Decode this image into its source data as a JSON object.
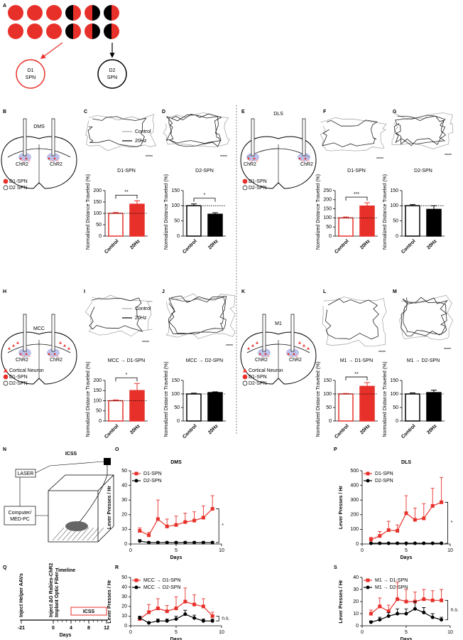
{
  "panel_letters": [
    "A",
    "B",
    "C",
    "D",
    "E",
    "F",
    "G",
    "H",
    "I",
    "J",
    "K",
    "L",
    "M",
    "N",
    "O",
    "P",
    "Q",
    "R",
    "S"
  ],
  "panel_a": {
    "d1_label": [
      "D1",
      "SPN"
    ],
    "d2_label": [
      "D2",
      "SPN"
    ]
  },
  "brains": [
    {
      "region": "DMS",
      "chr2": [
        "ChR2",
        "ChR2"
      ],
      "legend": [
        "D1-SPN",
        "D2 SPN"
      ]
    },
    {
      "region": "DLS",
      "chr2": [
        "ChR2",
        "ChR2"
      ],
      "legend": [
        "D1-SPN",
        "D2-SPN"
      ]
    },
    {
      "region": "MCC",
      "chr2": [
        "ChR2",
        "ChR2"
      ],
      "legend": [
        "Cortical Neuron",
        "D1-SPN",
        "D2-SPN"
      ]
    },
    {
      "region": "M1",
      "chr2": [
        "ChR2",
        "ChR2"
      ],
      "legend": [
        "Cortical Neuron",
        "D1-SPN",
        "D2-SPN"
      ]
    }
  ],
  "trace_legends": [
    [
      "Control",
      "20Hz"
    ],
    [
      "Control",
      "20Hz"
    ]
  ],
  "icss": {
    "title": "ICSS",
    "laser": "LASER",
    "computer": [
      "Computer/",
      "MED-PC"
    ]
  },
  "timeline": {
    "title": "Timeline",
    "events": [
      "Inject Helper AAVs",
      "Inject ΔG Rabies-ChR2",
      "Implant Optic Fiber"
    ],
    "box": "ICSS",
    "xlabel": "Days",
    "xticks": [
      -21,
      0,
      4,
      8,
      12
    ]
  },
  "chart_data": [
    {
      "type": "bar",
      "title": "D1-SPN",
      "ylabel": "Normalized Distance Traveled (%)",
      "categories": [
        "Control",
        "20Hz"
      ],
      "values": [
        100,
        140
      ],
      "errors": [
        4,
        15
      ],
      "color": "#e8302a",
      "ylim": [
        0,
        200
      ],
      "yticks": [
        0,
        50,
        100,
        150,
        200
      ],
      "reference_line": 100,
      "annotation": "**"
    },
    {
      "type": "bar",
      "title": "D2-SPN",
      "ylabel": "Normalized Distance Traveled (%)",
      "categories": [
        "Control",
        "20Hz"
      ],
      "values": [
        100,
        72
      ],
      "errors": [
        6,
        5
      ],
      "color": "#000000",
      "ylim": [
        0,
        150
      ],
      "yticks": [
        0,
        50,
        100,
        150
      ],
      "reference_line": 100,
      "annotation": "*"
    },
    {
      "type": "bar",
      "title": "D1-SPN",
      "ylabel": "Normalized Distance Traveled (%)",
      "categories": [
        "Control",
        "20Hz"
      ],
      "values": [
        100,
        165
      ],
      "errors": [
        5,
        18
      ],
      "color": "#e8302a",
      "ylim": [
        0,
        250
      ],
      "yticks": [
        0,
        50,
        100,
        150,
        200,
        250
      ],
      "reference_line": 100,
      "annotation": "***"
    },
    {
      "type": "bar",
      "title": "D2-SPN",
      "ylabel": "Normalized Distance Traveled (%)",
      "categories": [
        "Control",
        "20Hz"
      ],
      "values": [
        100,
        88
      ],
      "errors": [
        4,
        12
      ],
      "color": "#000000",
      "ylim": [
        0,
        150
      ],
      "yticks": [
        0,
        50,
        100,
        150
      ],
      "reference_line": 100
    },
    {
      "type": "bar",
      "title": "MCC → D1-SPN",
      "ylabel": "Normalized Distance Traveled (%)",
      "categories": [
        "Control",
        "20Hz"
      ],
      "values": [
        100,
        150
      ],
      "errors": [
        4,
        35
      ],
      "color": "#e8302a",
      "ylim": [
        0,
        200
      ],
      "yticks": [
        0,
        50,
        100,
        150,
        200
      ],
      "reference_line": 100,
      "annotation": "*"
    },
    {
      "type": "bar",
      "title": "MCC → D2-SPN",
      "ylabel": "Normalized Distance Traveled (%)",
      "categories": [
        "Control",
        "20Hz"
      ],
      "values": [
        100,
        105
      ],
      "errors": [
        3,
        3
      ],
      "color": "#000000",
      "ylim": [
        0,
        150
      ],
      "yticks": [
        0,
        50,
        100,
        150
      ],
      "reference_line": 100
    },
    {
      "type": "bar",
      "title": "M1 → D1-SPN",
      "ylabel": "Normalized Distance Traveled (%)",
      "categories": [
        "Control",
        "20Hz"
      ],
      "values": [
        100,
        128
      ],
      "errors": [
        2,
        14
      ],
      "color": "#e8302a",
      "ylim": [
        0,
        150
      ],
      "yticks": [
        0,
        50,
        100,
        150
      ],
      "reference_line": 100,
      "annotation": "**"
    },
    {
      "type": "bar",
      "title": "M1 → D2-SPN",
      "ylabel": "Normalized Distance Traveled (%)",
      "categories": [
        "Control",
        "20Hz"
      ],
      "values": [
        100,
        105
      ],
      "errors": [
        4,
        9
      ],
      "color": "#000000",
      "ylim": [
        0,
        150
      ],
      "yticks": [
        0,
        50,
        100,
        150
      ],
      "reference_line": 100
    },
    {
      "type": "line",
      "title": "DMS",
      "ylabel": "Lever Presses / Hr",
      "xlabel": "Days",
      "x": [
        1,
        2,
        3,
        4,
        5,
        6,
        7,
        8,
        9
      ],
      "xlim": [
        0,
        10
      ],
      "xticks": [
        0,
        5,
        10
      ],
      "ylim": [
        0,
        50
      ],
      "yticks": [
        0,
        10,
        20,
        30,
        40,
        50
      ],
      "annotation": "*",
      "series": [
        {
          "name": "D1-SPN",
          "color": "#e8302a",
          "values": [
            9,
            6,
            17,
            12,
            13,
            15,
            16,
            18,
            24
          ],
          "errors": [
            2,
            2,
            13,
            5,
            6,
            6,
            6,
            8,
            9
          ]
        },
        {
          "name": "D2-SPN",
          "color": "#000000",
          "values": [
            2,
            1,
            1,
            1,
            1,
            1,
            1,
            1,
            1
          ],
          "errors": [
            1,
            0.5,
            0.5,
            0.5,
            0.5,
            0.5,
            0.5,
            0.5,
            0.5
          ]
        }
      ]
    },
    {
      "type": "line",
      "title": "DLS",
      "ylabel": "Lever Presses / Hr",
      "xlabel": "Days",
      "x": [
        1,
        2,
        3,
        4,
        5,
        6,
        7,
        8,
        9
      ],
      "xlim": [
        0,
        10
      ],
      "xticks": [
        0,
        5,
        10
      ],
      "ylim": [
        0,
        500
      ],
      "yticks": [
        0,
        100,
        200,
        300,
        400,
        500
      ],
      "annotation": "*",
      "series": [
        {
          "name": "D1-SPN",
          "color": "#e8302a",
          "values": [
            30,
            55,
            95,
            90,
            210,
            165,
            175,
            260,
            285
          ],
          "errors": [
            15,
            30,
            60,
            40,
            120,
            80,
            100,
            120,
            170
          ]
        },
        {
          "name": "D2-SPN",
          "color": "#000000",
          "values": [
            5,
            5,
            5,
            5,
            5,
            5,
            5,
            5,
            5
          ],
          "errors": [
            2,
            2,
            2,
            2,
            2,
            2,
            2,
            2,
            2
          ]
        }
      ]
    },
    {
      "type": "line",
      "ylabel": "Lever Presses / Hr",
      "xlabel": "Days",
      "x": [
        1,
        2,
        3,
        4,
        5,
        6,
        7,
        8,
        9
      ],
      "xlim": [
        0,
        10
      ],
      "xticks": [
        0,
        5,
        10
      ],
      "ylim": [
        0,
        50
      ],
      "yticks": [
        0,
        10,
        20,
        30,
        40,
        50
      ],
      "annotation": "n.s.",
      "series": [
        {
          "name": "MCC → D1-SPN",
          "color": "#e8302a",
          "values": [
            7,
            14,
            18,
            15,
            18,
            25,
            22,
            20,
            10
          ],
          "errors": [
            3,
            8,
            10,
            6,
            12,
            14,
            10,
            8,
            4
          ]
        },
        {
          "name": "MCC → D2-SPN",
          "color": "#000000",
          "values": [
            8,
            3,
            5,
            5,
            7,
            12,
            8,
            5,
            5
          ],
          "errors": [
            2,
            1,
            2,
            2,
            3,
            4,
            3,
            2,
            2
          ]
        }
      ]
    },
    {
      "type": "line",
      "ylabel": "Lever Presses / Hr",
      "xlabel": "Days",
      "x": [
        1,
        2,
        3,
        4,
        5,
        6,
        7,
        8,
        9
      ],
      "xlim": [
        0,
        10
      ],
      "xticks": [
        0,
        5,
        10
      ],
      "ylim": [
        0,
        40
      ],
      "yticks": [
        0,
        10,
        20,
        30,
        40
      ],
      "annotation": "n.s.",
      "series": [
        {
          "name": "M1 → D1-SPN",
          "color": "#e8302a",
          "values": [
            10,
            16,
            12,
            22,
            20,
            20,
            22,
            21,
            21
          ],
          "errors": [
            3,
            7,
            5,
            14,
            10,
            8,
            8,
            8,
            9
          ]
        },
        {
          "name": "M1 → D2-SPN",
          "color": "#000000",
          "values": [
            3,
            5,
            8,
            10,
            10,
            14,
            11,
            7,
            5
          ],
          "errors": [
            1,
            2,
            3,
            4,
            4,
            6,
            4,
            3,
            2
          ]
        }
      ]
    }
  ]
}
